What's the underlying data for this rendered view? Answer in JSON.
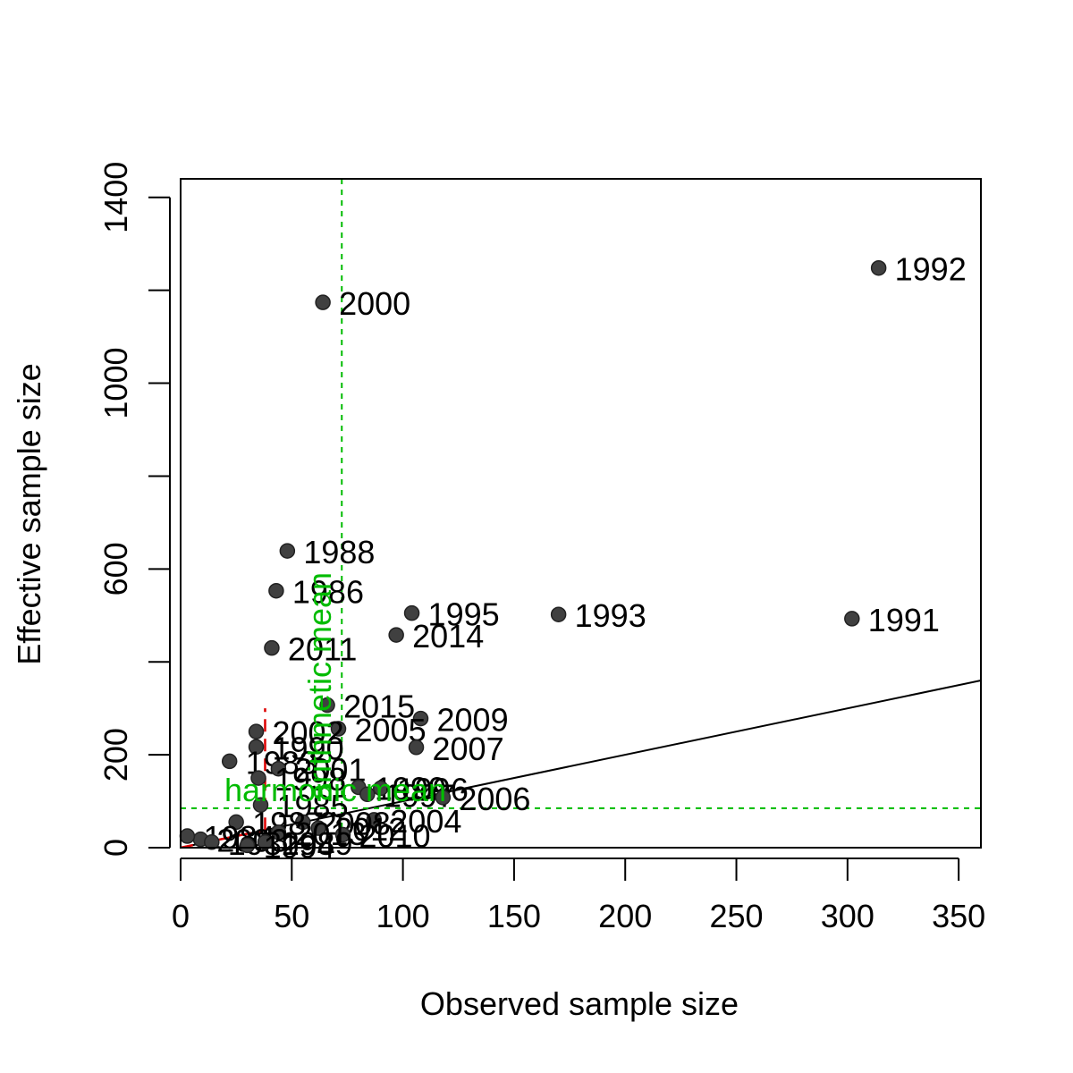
{
  "chart_data": {
    "type": "scatter",
    "title": "",
    "xlabel": "Observed sample size",
    "ylabel": "Effective sample size",
    "xlim": [
      0,
      360
    ],
    "ylim": [
      0,
      1440
    ],
    "xticks": [
      0,
      50,
      100,
      150,
      200,
      250,
      300,
      350
    ],
    "yticks": [
      0,
      200,
      600,
      1000,
      1400
    ],
    "yticks_unlabeled": [
      400,
      800,
      1200
    ],
    "grid": false,
    "point_color": "#404040",
    "points": [
      {
        "x": 314,
        "y": 1248,
        "label": "1992"
      },
      {
        "x": 64,
        "y": 1174,
        "label": "2000"
      },
      {
        "x": 48,
        "y": 639,
        "label": "1988"
      },
      {
        "x": 43,
        "y": 553,
        "label": "1986"
      },
      {
        "x": 104,
        "y": 505,
        "label": "1995"
      },
      {
        "x": 170,
        "y": 502,
        "label": "1993"
      },
      {
        "x": 302,
        "y": 493,
        "label": "1991"
      },
      {
        "x": 97,
        "y": 458,
        "label": "2014"
      },
      {
        "x": 41,
        "y": 430,
        "label": "2011"
      },
      {
        "x": 66,
        "y": 307,
        "label": "2015"
      },
      {
        "x": 108,
        "y": 278,
        "label": "2009"
      },
      {
        "x": 71,
        "y": 256,
        "label": "2005"
      },
      {
        "x": 34,
        "y": 250,
        "label": "2002"
      },
      {
        "x": 106,
        "y": 216,
        "label": "2007"
      },
      {
        "x": 34,
        "y": 217,
        "label": "1990"
      },
      {
        "x": 22,
        "y": 186,
        "label": "1983"
      },
      {
        "x": 44,
        "y": 170,
        "label": "2001"
      },
      {
        "x": 35,
        "y": 150,
        "label": "1998"
      },
      {
        "x": 80,
        "y": 130,
        "label": "1999"
      },
      {
        "x": 90,
        "y": 128,
        "label": "1996"
      },
      {
        "x": 84,
        "y": 115,
        "label": "1997"
      },
      {
        "x": 118,
        "y": 108,
        "label": "2006"
      },
      {
        "x": 36,
        "y": 92,
        "label": "1985"
      },
      {
        "x": 87,
        "y": 60,
        "label": "2004"
      },
      {
        "x": 55,
        "y": 55,
        "label": "2008"
      },
      {
        "x": 25,
        "y": 55,
        "label": "1987"
      },
      {
        "x": 62,
        "y": 42,
        "label": "2012"
      },
      {
        "x": 73,
        "y": 28,
        "label": "2010"
      },
      {
        "x": 44,
        "y": 33,
        "label": "2013"
      },
      {
        "x": 9,
        "y": 18,
        "label": "2003"
      },
      {
        "x": 3,
        "y": 25,
        "label": "1984"
      },
      {
        "x": 14,
        "y": 12,
        "label": "1982"
      },
      {
        "x": 38,
        "y": 12,
        "label": "1989"
      },
      {
        "x": 30,
        "y": 5,
        "label": "1994"
      }
    ],
    "reference_lines": {
      "identity_slope": 1,
      "red_dashed_x_max": 38,
      "arithmetic_mean_x": 72.5,
      "harmonic_mean_y": 85,
      "arithmetic_mean_label": "arithmetic mean",
      "harmonic_mean_label": "harmonic mean",
      "mean_line_color": "#00bb00",
      "red_line_color": "#dd0000"
    }
  }
}
